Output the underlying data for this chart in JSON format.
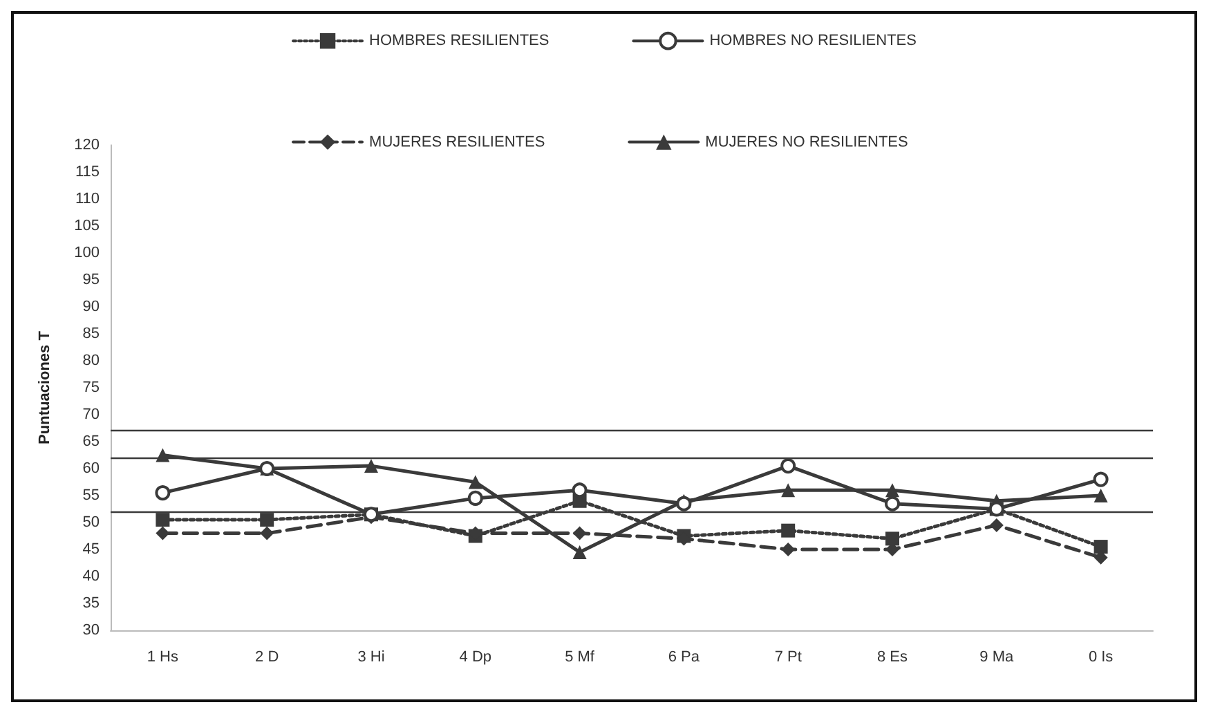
{
  "chart_data": {
    "type": "line",
    "ylabel": "Puntuaciones T",
    "categories": [
      "1 Hs",
      "2 D",
      "3 Hi",
      "4 Dp",
      "5 Mf",
      "6 Pa",
      "7 Pt",
      "8 Es",
      "9 Ma",
      "0 Is"
    ],
    "series": [
      {
        "name": "HOMBRES RESILIENTES",
        "color": "#3a3a3a",
        "marker": "square",
        "line_style": "dotted",
        "values": [
          50.5,
          50.5,
          51.5,
          47.5,
          54,
          47.5,
          48.5,
          47,
          52.5,
          45.5
        ]
      },
      {
        "name": "HOMBRES NO RESILIENTES",
        "color": "#3a3a3a",
        "marker": "circle",
        "line_style": "solid",
        "values": [
          55.5,
          60,
          51.5,
          54.5,
          56,
          53.5,
          60.5,
          53.5,
          52.5,
          58
        ]
      },
      {
        "name": "MUJERES RESILIENTES",
        "color": "#3a3a3a",
        "marker": "diamond",
        "line_style": "dashed",
        "values": [
          48,
          48,
          51,
          48,
          48,
          47,
          45,
          45,
          49.5,
          43.5
        ]
      },
      {
        "name": "MUJERES NO RESILIENTES",
        "color": "#3a3a3a",
        "marker": "triangle",
        "line_style": "solid",
        "values": [
          62.5,
          60,
          60.5,
          57.5,
          44.5,
          54,
          56,
          56,
          54,
          55
        ]
      }
    ],
    "ylim": [
      30,
      120
    ],
    "yticks": [
      30,
      35,
      40,
      45,
      50,
      55,
      60,
      65,
      70,
      75,
      80,
      85,
      90,
      95,
      100,
      105,
      110,
      115,
      120
    ],
    "ref_lines": [
      {
        "axis": "y",
        "value": 67,
        "color": "#3a3a3a"
      },
      {
        "axis": "y",
        "value": 62,
        "color": "#3a3a3a"
      },
      {
        "axis": "y",
        "value": 52,
        "color": "#3a3a3a"
      }
    ],
    "grid": false,
    "legend": "top"
  }
}
